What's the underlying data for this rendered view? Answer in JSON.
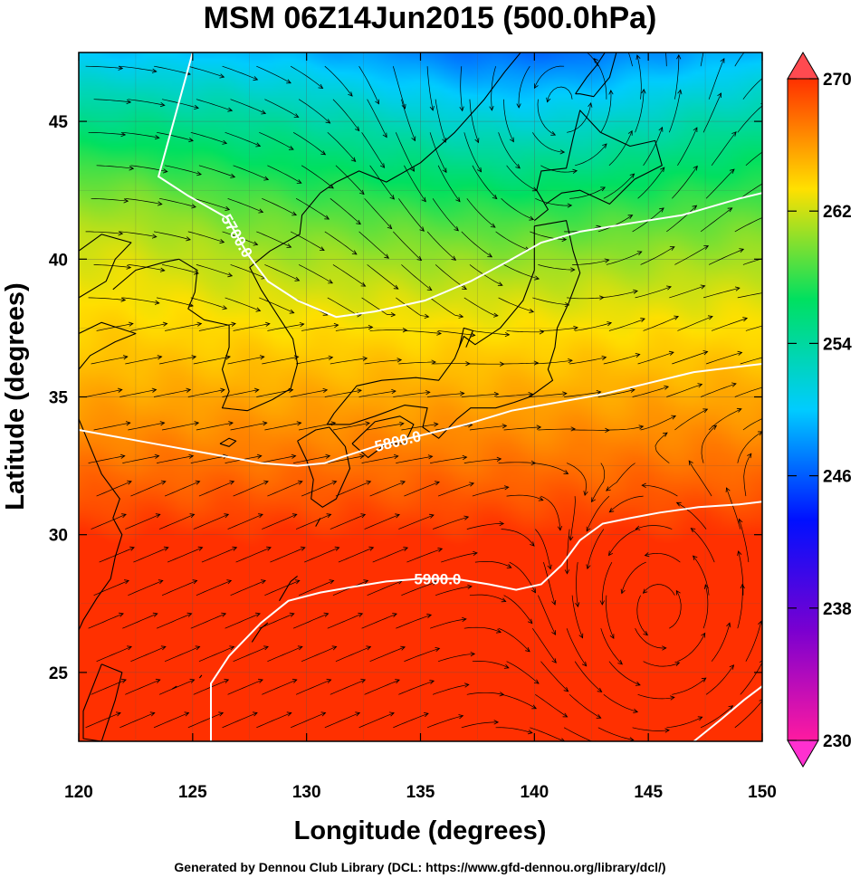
{
  "chart_data": {
    "type": "heatmap",
    "title": "MSM 06Z14Jun2015 (500.0hPa)",
    "xlabel": "Longitude (degrees)",
    "ylabel": "Latitude  (degrees)",
    "xlim": [
      120,
      150
    ],
    "ylim": [
      22.5,
      47.5
    ],
    "x_ticks": [
      120,
      125,
      130,
      135,
      140,
      145,
      150
    ],
    "y_ticks": [
      25,
      30,
      35,
      40,
      45
    ],
    "x_tick_labels": [
      "120",
      "125",
      "130",
      "135",
      "140",
      "145",
      "150"
    ],
    "y_tick_labels": [
      "25",
      "30",
      "35",
      "40",
      "45"
    ],
    "grid": true,
    "colorbar": {
      "min": 230,
      "max": 270,
      "ticks": [
        230,
        238,
        246,
        254,
        262,
        270
      ],
      "tick_labels": [
        "230",
        "238",
        "246",
        "254",
        "262",
        "270"
      ],
      "colors": [
        "#ff1aa0",
        "#7a00d0",
        "#0010ff",
        "#00ccff",
        "#00e060",
        "#ffe000",
        "#ff3000"
      ],
      "legend_position": "right"
    },
    "contours": [
      {
        "value": 5700,
        "label": "5700.0",
        "points": [
          [
            125.0,
            47.5
          ],
          [
            124.0,
            44.5
          ],
          [
            123.5,
            43.0
          ],
          [
            124.8,
            42.3
          ],
          [
            126.5,
            41.5
          ],
          [
            127.4,
            40.2
          ],
          [
            128.3,
            39.2
          ],
          [
            129.6,
            38.5
          ],
          [
            131.3,
            37.9
          ],
          [
            133.0,
            38.1
          ],
          [
            135.2,
            38.5
          ],
          [
            137.2,
            39.2
          ],
          [
            138.8,
            39.9
          ],
          [
            140.3,
            40.6
          ],
          [
            142.0,
            41.0
          ],
          [
            144.2,
            41.3
          ],
          [
            146.5,
            41.6
          ],
          [
            149.0,
            42.2
          ],
          [
            150.0,
            42.4
          ]
        ]
      },
      {
        "value": 5800,
        "label": "5800.0",
        "points": [
          [
            120.0,
            33.8
          ],
          [
            122.0,
            33.5
          ],
          [
            124.0,
            33.2
          ],
          [
            126.0,
            32.9
          ],
          [
            128.0,
            32.6
          ],
          [
            129.6,
            32.5
          ],
          [
            130.8,
            32.6
          ],
          [
            131.5,
            32.8
          ],
          [
            133.0,
            33.2
          ],
          [
            135.0,
            33.6
          ],
          [
            137.0,
            34.0
          ],
          [
            139.0,
            34.5
          ],
          [
            141.0,
            34.8
          ],
          [
            143.0,
            35.1
          ],
          [
            145.0,
            35.5
          ],
          [
            147.0,
            35.9
          ],
          [
            149.0,
            36.1
          ],
          [
            150.0,
            36.2
          ]
        ]
      },
      {
        "value": 5900,
        "label": "5900.0",
        "points": [
          [
            125.8,
            22.5
          ],
          [
            125.8,
            24.6
          ],
          [
            126.6,
            25.6
          ],
          [
            128.0,
            26.8
          ],
          [
            129.2,
            27.6
          ],
          [
            130.6,
            27.9
          ],
          [
            132.0,
            28.1
          ],
          [
            133.5,
            28.3
          ],
          [
            135.0,
            28.4
          ],
          [
            136.5,
            28.4
          ],
          [
            138.0,
            28.2
          ],
          [
            139.2,
            28.0
          ],
          [
            140.3,
            28.2
          ],
          [
            141.2,
            28.9
          ],
          [
            142.0,
            29.8
          ],
          [
            143.0,
            30.4
          ],
          [
            144.2,
            30.6
          ],
          [
            145.5,
            30.8
          ],
          [
            147.2,
            31.0
          ],
          [
            149.0,
            31.1
          ],
          [
            150.0,
            31.2
          ]
        ]
      },
      {
        "value": 5900,
        "label": "",
        "points": [
          [
            147.0,
            22.5
          ],
          [
            148.2,
            23.3
          ],
          [
            149.2,
            24.0
          ],
          [
            150.0,
            24.5
          ]
        ]
      }
    ],
    "cyclones": [
      {
        "center": [
          141.0,
          45.0
        ],
        "radius": [
          3.5,
          3.0
        ]
      },
      {
        "center": [
          145.8,
          26.6
        ],
        "radius": [
          3.0,
          3.0
        ]
      }
    ]
  },
  "footer": "Generated by Dennou Club Library (DCL: https://www.gfd-dennou.org/library/dcl/)"
}
